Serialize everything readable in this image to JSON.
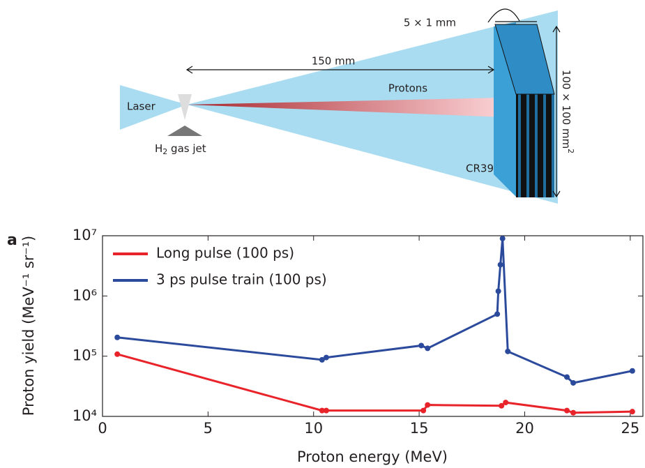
{
  "diagram": {
    "plate_label": "5 × 1 mm",
    "distance": "150 mm",
    "protons": "Protons",
    "laser": "Laser",
    "gas_jet": {
      "main": "H",
      "sub": "2",
      "rest": " gas jet"
    },
    "detector": "CR39",
    "size": {
      "main": "100 × 100 mm",
      "sup": "2"
    },
    "panel": "a"
  },
  "chart_data": {
    "type": "line",
    "x_label": "Proton energy (MeV)",
    "y_label": "Proton yield (MeV⁻¹ sr⁻¹)",
    "yscale": "log",
    "xlim": [
      0,
      25.6
    ],
    "ylim": [
      10000,
      10000000
    ],
    "xticks": [
      0,
      5,
      10,
      15,
      20,
      25
    ],
    "yticks": [
      {
        "value": 10000,
        "label": "10⁴"
      },
      {
        "value": 100000,
        "label": "10⁵"
      },
      {
        "value": 1000000,
        "label": "10⁶"
      },
      {
        "value": 10000000,
        "label": "10⁷"
      }
    ],
    "legend": "upper left",
    "series": [
      {
        "name": "Long pulse (100 ps)",
        "color": "#e8232a",
        "x": [
          0.7,
          10.4,
          10.6,
          15.2,
          15.4,
          18.9,
          19.1,
          22.0,
          22.3,
          25.1
        ],
        "values": [
          108000,
          12500,
          12500,
          12500,
          15500,
          15000,
          17000,
          12500,
          11500,
          12000
        ]
      },
      {
        "name": "3 ps pulse train (100 ps)",
        "color": "#2b4a9c",
        "x": [
          0.7,
          10.4,
          10.6,
          15.1,
          15.4,
          18.7,
          18.75,
          18.85,
          18.95,
          19.2,
          22.0,
          22.3,
          25.1
        ],
        "values": [
          205000,
          87000,
          95000,
          150000,
          135000,
          500000,
          1200000,
          3300000,
          9000000,
          120000,
          45000,
          36000,
          57000
        ]
      }
    ]
  }
}
